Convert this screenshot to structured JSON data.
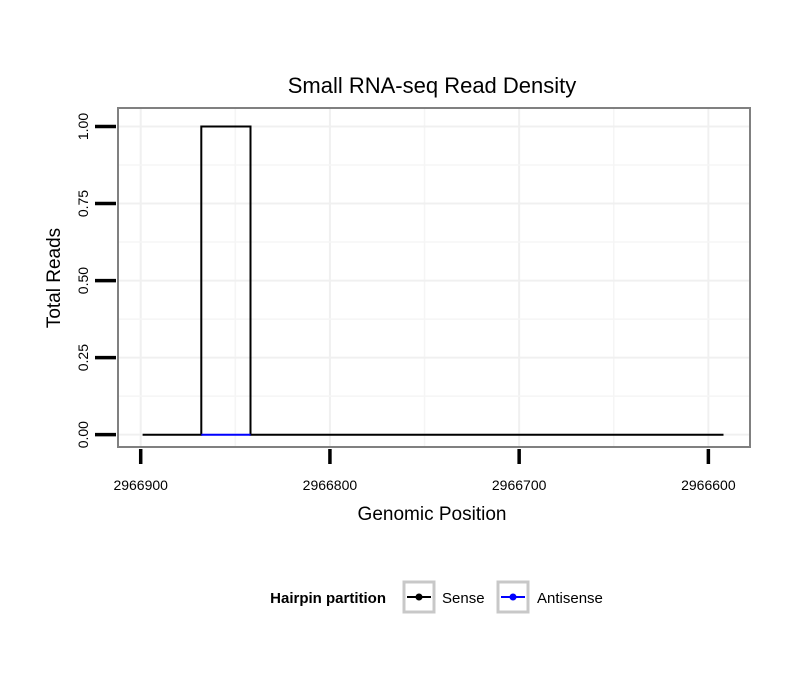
{
  "chart_data": {
    "type": "line",
    "title": "Small RNA-seq Read Density",
    "xlabel": "Genomic Position",
    "ylabel": "Total Reads",
    "x_reversed": true,
    "xlim": [
      2966912,
      2966578
    ],
    "ylim": [
      -0.04,
      1.06
    ],
    "x_ticks": [
      2966900,
      2966800,
      2966700,
      2966600
    ],
    "x_tick_labels": [
      "2966900",
      "2966800",
      "2966700",
      "2966600"
    ],
    "y_ticks": [
      0,
      0.25,
      0.5,
      0.75,
      1.0
    ],
    "y_tick_labels": [
      "0.00",
      "0.25",
      "0.50",
      "0.75",
      "1.00"
    ],
    "grid": true,
    "legend": {
      "title": "Hairpin partition",
      "position": "bottom",
      "entries": [
        {
          "label": "Sense",
          "color": "#000000"
        },
        {
          "label": "Antisense",
          "color": "#0000ff"
        }
      ]
    },
    "series": [
      {
        "name": "Sense",
        "color": "#000000",
        "x": [
          2966899,
          2966868,
          2966868,
          2966842,
          2966842,
          2966592
        ],
        "y": [
          0,
          0,
          1,
          1,
          0,
          0
        ]
      },
      {
        "name": "Antisense",
        "color": "#0000ff",
        "x": [
          2966868,
          2966842
        ],
        "y": [
          0,
          0
        ]
      }
    ]
  }
}
